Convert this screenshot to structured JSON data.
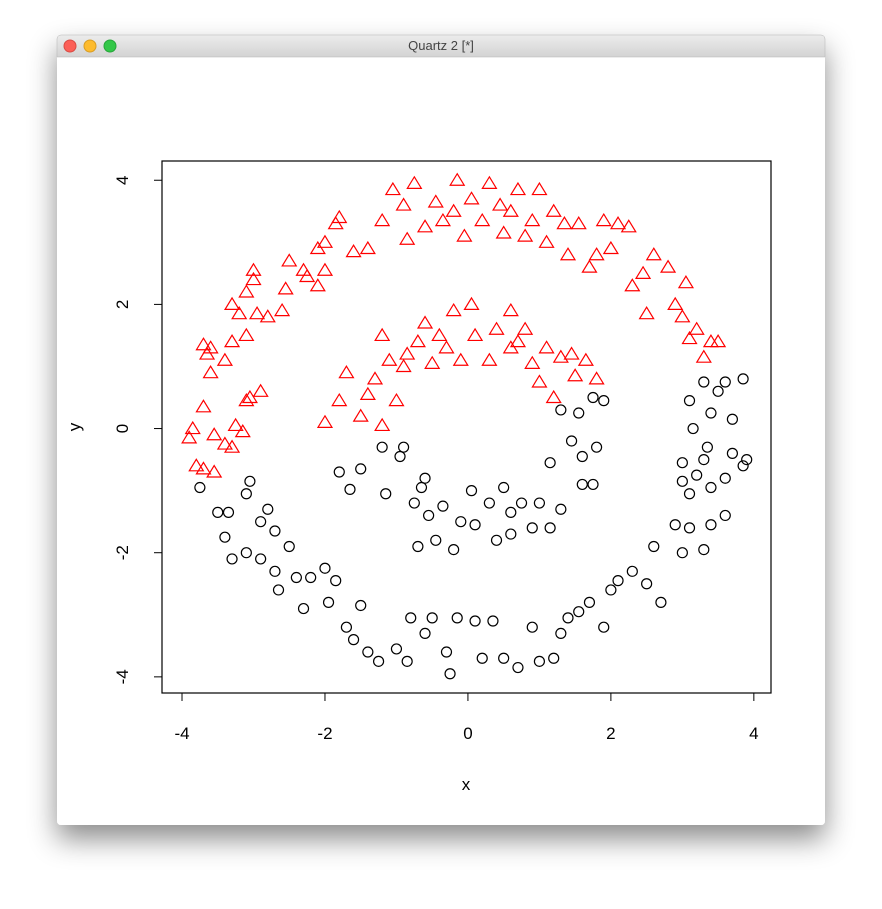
{
  "window_title": "Quartz 2 [*]",
  "chart_data": {
    "type": "scatter",
    "xlabel": "x",
    "ylabel": "y",
    "xlim": [
      -4.28,
      4.24
    ],
    "ylim": [
      -4.26,
      4.31
    ],
    "xticks": [
      -4,
      -2,
      0,
      2,
      4
    ],
    "yticks": [
      -4,
      -2,
      0,
      2,
      4
    ],
    "series": [
      {
        "color": "#ff0000",
        "marker": "triangle",
        "x": [
          -3.9,
          -3.8,
          -3.7,
          -3.55,
          -3.85,
          -3.7,
          -3.55,
          -3.4,
          -3.3,
          -3.25,
          -3.15,
          -3.1,
          -3.05,
          -2.9,
          -3.6,
          -3.65,
          -3.7,
          -3.6,
          -3.4,
          -3.3,
          -3.1,
          -3.2,
          -3.3,
          -3.1,
          -3.0,
          -3.0,
          -2.95,
          -2.8,
          -2.6,
          -2.55,
          -2.5,
          -2.3,
          -2.25,
          -2.1,
          -2.0,
          -2.1,
          -2.0,
          -1.85,
          -1.8,
          -1.6,
          -1.4,
          -1.2,
          -1.05,
          -0.9,
          -0.85,
          -0.75,
          -0.6,
          -0.45,
          -0.35,
          -0.2,
          -0.15,
          -0.05,
          0.05,
          0.2,
          0.3,
          0.45,
          0.5,
          0.6,
          0.7,
          0.8,
          0.9,
          1.0,
          1.1,
          1.2,
          1.35,
          1.4,
          1.55,
          1.7,
          1.8,
          1.9,
          2.1,
          2.25,
          2.0,
          2.3,
          2.45,
          2.5,
          2.6,
          2.8,
          2.9,
          3.0,
          3.05,
          3.1,
          3.2,
          3.4,
          3.5,
          3.3,
          -2.0,
          -1.8,
          -1.7,
          -1.5,
          -1.4,
          -1.3,
          -1.2,
          -1.1,
          -1.2,
          -1.0,
          -0.9,
          -0.85,
          -0.7,
          -0.6,
          -0.5,
          -0.4,
          -0.3,
          -0.2,
          -0.1,
          0.05,
          0.1,
          0.3,
          0.4,
          0.6,
          0.7,
          0.8,
          0.9,
          1.0,
          1.1,
          1.3,
          1.45,
          1.5,
          1.65,
          1.8,
          0.6,
          1.2
        ],
        "y": [
          -0.15,
          -0.6,
          -0.65,
          -0.7,
          0,
          0.35,
          -0.1,
          -0.25,
          -0.3,
          0.05,
          -0.05,
          0.45,
          0.5,
          0.6,
          0.9,
          1.2,
          1.35,
          1.3,
          1.1,
          1.4,
          1.5,
          1.85,
          2.0,
          2.2,
          2.4,
          2.55,
          1.85,
          1.8,
          1.9,
          2.25,
          2.7,
          2.55,
          2.45,
          2.3,
          2.55,
          2.9,
          3.0,
          3.3,
          3.4,
          2.85,
          2.9,
          3.35,
          3.85,
          3.6,
          3.05,
          3.95,
          3.25,
          3.65,
          3.35,
          3.5,
          4.0,
          3.1,
          3.7,
          3.35,
          3.95,
          3.6,
          3.15,
          3.5,
          3.85,
          3.1,
          3.35,
          3.85,
          3.0,
          3.5,
          3.3,
          2.8,
          3.3,
          2.6,
          2.8,
          3.35,
          3.3,
          3.25,
          2.9,
          2.3,
          2.5,
          1.85,
          2.8,
          2.6,
          2.0,
          1.8,
          2.35,
          1.45,
          1.6,
          1.4,
          1.4,
          1.15,
          0.1,
          0.45,
          0.9,
          0.2,
          0.55,
          0.8,
          1.5,
          1.1,
          0.05,
          0.45,
          1.0,
          1.2,
          1.4,
          1.7,
          1.05,
          1.5,
          1.3,
          1.9,
          1.1,
          2.0,
          1.5,
          1.1,
          1.6,
          1.9,
          1.4,
          1.6,
          1.05,
          0.75,
          1.3,
          1.15,
          1.2,
          0.85,
          1.1,
          0.8,
          1.3,
          0.5
        ]
      },
      {
        "color": "#000000",
        "marker": "circle",
        "x": [
          -3.75,
          -3.5,
          -3.35,
          -3.1,
          -3.05,
          -3.4,
          -3.3,
          -3.1,
          -2.9,
          -2.8,
          -2.7,
          -2.9,
          -2.7,
          -2.65,
          -2.5,
          -2.4,
          -2.3,
          -2.2,
          -2.0,
          -1.95,
          -1.85,
          -1.7,
          -1.5,
          -1.6,
          -1.4,
          -1.25,
          -1.0,
          -0.85,
          -0.8,
          -0.6,
          -0.5,
          -0.3,
          -0.25,
          -0.15,
          0.1,
          0.2,
          0.35,
          0.5,
          0.7,
          0.9,
          1.0,
          1.2,
          1.3,
          1.4,
          1.55,
          1.7,
          1.9,
          2.0,
          2.1,
          2.3,
          2.5,
          2.7,
          2.6,
          2.9,
          3.0,
          3.1,
          3.3,
          3.4,
          3.6,
          3.1,
          3.0,
          3.2,
          3.3,
          3.4,
          3.6,
          3.7,
          3.85,
          3.9,
          3.7,
          3.6,
          3.85,
          3.4,
          3.1,
          3.15,
          3.35,
          3.0,
          3.5,
          3.3,
          -1.8,
          -1.65,
          -1.5,
          -1.2,
          -1.15,
          -0.95,
          -0.9,
          -0.75,
          -0.65,
          -0.55,
          -0.45,
          -0.35,
          -0.2,
          -0.1,
          0.05,
          0.1,
          0.3,
          0.4,
          0.5,
          0.6,
          0.75,
          0.9,
          1.0,
          1.15,
          1.3,
          1.15,
          1.3,
          1.45,
          1.6,
          1.6,
          1.75,
          1.75,
          1.9,
          1.8,
          1.55,
          -0.6,
          0.6,
          -0.7
        ],
        "y": [
          -0.95,
          -1.35,
          -1.35,
          -1.05,
          -0.85,
          -1.75,
          -2.1,
          -2.0,
          -1.5,
          -1.3,
          -1.65,
          -2.1,
          -2.3,
          -2.6,
          -1.9,
          -2.4,
          -2.9,
          -2.4,
          -2.25,
          -2.8,
          -2.45,
          -3.2,
          -2.85,
          -3.4,
          -3.6,
          -3.75,
          -3.55,
          -3.75,
          -3.05,
          -3.3,
          -3.05,
          -3.6,
          -3.95,
          -3.05,
          -3.1,
          -3.7,
          -3.1,
          -3.7,
          -3.85,
          -3.2,
          -3.75,
          -3.7,
          -3.3,
          -3.05,
          -2.95,
          -2.8,
          -3.2,
          -2.6,
          -2.45,
          -2.3,
          -2.5,
          -2.8,
          -1.9,
          -1.55,
          -2.0,
          -1.6,
          -1.95,
          -1.55,
          -1.4,
          -1.05,
          -0.85,
          -0.75,
          -0.5,
          -0.95,
          -0.8,
          -0.4,
          -0.6,
          -0.5,
          0.15,
          0.75,
          0.8,
          0.25,
          0.45,
          0.0,
          -0.3,
          -0.55,
          0.6,
          0.75,
          -0.7,
          -0.98,
          -0.65,
          -0.3,
          -1.05,
          -0.45,
          -0.3,
          -1.2,
          -0.95,
          -1.4,
          -1.8,
          -1.25,
          -1.95,
          -1.5,
          -1.0,
          -1.55,
          -1.2,
          -1.8,
          -0.95,
          -1.35,
          -1.2,
          -1.6,
          -1.2,
          -1.6,
          -1.3,
          -0.55,
          0.3,
          -0.2,
          -0.45,
          -0.9,
          -0.9,
          0.5,
          0.45,
          -0.3,
          0.25,
          -0.8,
          -1.7,
          -1.9
        ]
      }
    ]
  }
}
